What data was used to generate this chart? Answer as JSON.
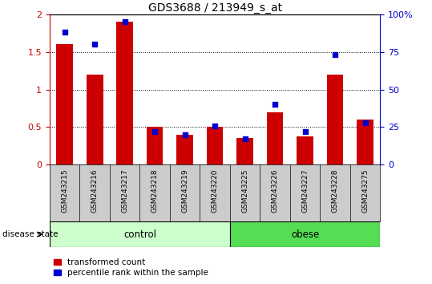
{
  "title": "GDS3688 / 213949_s_at",
  "samples": [
    "GSM243215",
    "GSM243216",
    "GSM243217",
    "GSM243218",
    "GSM243219",
    "GSM243220",
    "GSM243225",
    "GSM243226",
    "GSM243227",
    "GSM243228",
    "GSM243275"
  ],
  "red_values": [
    1.6,
    1.2,
    1.9,
    0.5,
    0.4,
    0.5,
    0.35,
    0.7,
    0.38,
    1.2,
    0.6
  ],
  "blue_values": [
    88,
    80,
    95,
    22,
    20,
    26,
    17,
    40,
    22,
    73,
    28
  ],
  "red_color": "#cc0000",
  "blue_color": "#0000cc",
  "left_ylim": [
    0,
    2
  ],
  "right_ylim": [
    0,
    100
  ],
  "left_yticks": [
    0,
    0.5,
    1.0,
    1.5,
    2.0
  ],
  "right_yticks": [
    0,
    25,
    50,
    75,
    100
  ],
  "right_yticklabels": [
    "0",
    "25",
    "50",
    "75",
    "100%"
  ],
  "n_control": 6,
  "n_obese": 5,
  "control_color": "#ccffcc",
  "obese_color": "#55dd55",
  "label_bg_color": "#cccccc",
  "legend_red": "transformed count",
  "legend_blue": "percentile rank within the sample",
  "disease_state_label": "disease state",
  "bar_width": 0.55
}
